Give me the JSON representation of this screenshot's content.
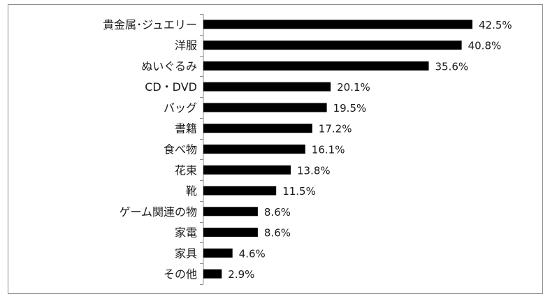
{
  "chart_data": {
    "type": "bar",
    "orientation": "horizontal",
    "title": "",
    "xlabel": "",
    "ylabel": "",
    "categories": [
      "貴金属･ジュエリー",
      "洋服",
      "ぬいぐるみ",
      "CD・DVD",
      "バッグ",
      "書籍",
      "食べ物",
      "花束",
      "靴",
      "ゲーム関連の物",
      "家電",
      "家具",
      "その他"
    ],
    "values": [
      42.5,
      40.8,
      35.6,
      20.1,
      19.5,
      17.2,
      16.1,
      13.8,
      11.5,
      8.6,
      8.6,
      4.6,
      2.9
    ],
    "value_labels": [
      "42.5%",
      "40.8%",
      "35.6%",
      "20.1%",
      "19.5%",
      "17.2%",
      "16.1%",
      "13.8%",
      "11.5%",
      "8.6%",
      "8.6%",
      "4.6%",
      "2.9%"
    ],
    "unit": "%",
    "xlim": [
      0,
      50
    ],
    "grid": false,
    "legend": "none",
    "bar_color": "#000000"
  }
}
